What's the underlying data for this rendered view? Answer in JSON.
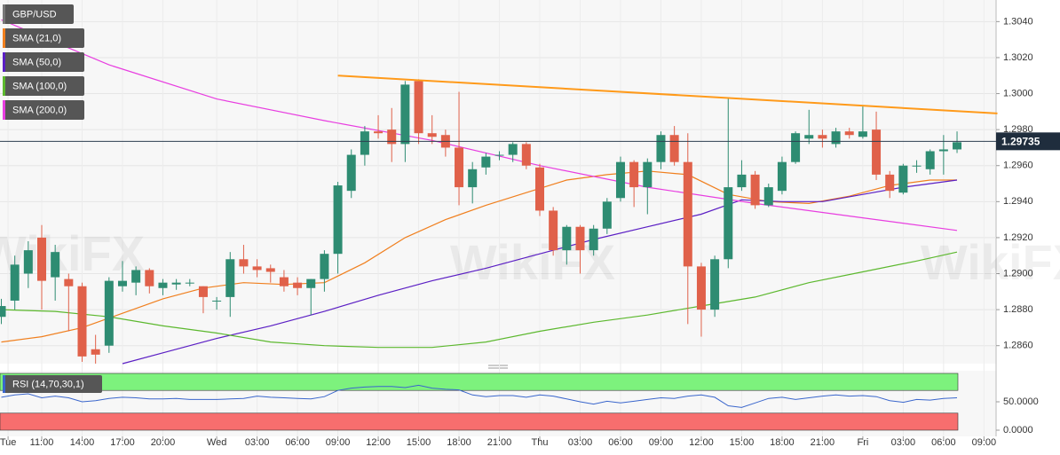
{
  "chart_data": [
    {
      "type": "candlestick",
      "title": "GBP/USD",
      "watermark": "WikiFX",
      "x": [
        8,
        9,
        10,
        11,
        12,
        13,
        14,
        15,
        16,
        17,
        18,
        19,
        20,
        21,
        22,
        23,
        24,
        25,
        26,
        27,
        28,
        29,
        30,
        31,
        32,
        33,
        34,
        35,
        36,
        37,
        38,
        39,
        40,
        41,
        42,
        43,
        44,
        45,
        46,
        47,
        48,
        49,
        50,
        51,
        52,
        53,
        54,
        55,
        56,
        57,
        58,
        59,
        60,
        61,
        62,
        63,
        64,
        65,
        66,
        67,
        68,
        69,
        70,
        71,
        72,
        73,
        74,
        75,
        76,
        77,
        78,
        79
      ],
      "open": [
        1.2876,
        1.2885,
        1.29,
        1.292,
        1.2898,
        1.2897,
        1.2893,
        1.2858,
        1.286,
        1.2893,
        1.2895,
        1.2902,
        1.2892,
        1.2894,
        1.2895,
        1.2893,
        1.2885,
        1.2887,
        1.2908,
        1.2904,
        1.2903,
        1.2898,
        1.2895,
        1.2892,
        1.2897,
        1.2911,
        1.2946,
        1.2966,
        1.2979,
        1.298,
        1.2972,
        1.3007,
        1.2978,
        1.2977,
        1.297,
        1.2948,
        1.2959,
        1.2966,
        1.2966,
        1.2972,
        1.2959,
        1.2935,
        1.2913,
        1.2926,
        1.2913,
        1.2925,
        1.2942,
        1.2962,
        1.2948,
        1.2962,
        1.2977,
        1.2962,
        1.2904,
        1.288,
        1.2908,
        1.2948,
        1.2955,
        1.2938,
        1.2946,
        1.2962,
        1.2975,
        1.2977,
        1.2972,
        1.2979,
        1.2976,
        1.298,
        1.2955,
        1.2945,
        1.296,
        1.2958,
        1.2968,
        1.2969
      ],
      "high": [
        1.2886,
        1.291,
        1.2918,
        1.2927,
        1.2916,
        1.29,
        1.2895,
        1.2866,
        1.2898,
        1.2907,
        1.2904,
        1.2903,
        1.2897,
        1.2897,
        1.2897,
        1.2893,
        1.2887,
        1.2912,
        1.2916,
        1.2908,
        1.2905,
        1.2902,
        1.2898,
        1.2897,
        1.2913,
        1.2951,
        1.2969,
        1.2982,
        1.2988,
        1.2992,
        1.3007,
        1.3008,
        1.2988,
        1.298,
        1.3001,
        1.2962,
        1.2967,
        1.2968,
        1.2973,
        1.2973,
        1.2961,
        1.2937,
        1.2927,
        1.2927,
        1.2927,
        1.2942,
        1.2965,
        1.2963,
        1.2964,
        1.2979,
        1.2982,
        1.2978,
        1.2906,
        1.291,
        1.2998,
        1.2963,
        1.2957,
        1.295,
        1.2965,
        1.2979,
        1.2991,
        1.298,
        1.2981,
        1.2981,
        1.2993,
        1.299,
        1.2957,
        1.2961,
        1.2963,
        1.2969,
        1.2977,
        1.2979
      ],
      "low": [
        1.2872,
        1.288,
        1.2892,
        1.288,
        1.2885,
        1.2868,
        1.2851,
        1.285,
        1.2856,
        1.289,
        1.2888,
        1.2889,
        1.2888,
        1.2891,
        1.2893,
        1.2878,
        1.288,
        1.2876,
        1.29,
        1.2898,
        1.2895,
        1.289,
        1.2888,
        1.2877,
        1.289,
        1.29,
        1.2942,
        1.296,
        1.2975,
        1.2962,
        1.2962,
        1.2972,
        1.2972,
        1.2965,
        1.2938,
        1.2939,
        1.2955,
        1.2963,
        1.2962,
        1.2958,
        1.2932,
        1.291,
        1.2905,
        1.29,
        1.291,
        1.2922,
        1.294,
        1.2937,
        1.2933,
        1.2958,
        1.296,
        1.2872,
        1.2865,
        1.2876,
        1.2903,
        1.2946,
        1.2936,
        1.2937,
        1.2944,
        1.2961,
        1.2972,
        1.297,
        1.297,
        1.2975,
        1.2975,
        1.2952,
        1.2942,
        1.2944,
        1.2956,
        1.2955,
        1.2955,
        1.2967
      ],
      "close": [
        1.2882,
        1.2905,
        1.2913,
        1.2896,
        1.2912,
        1.2893,
        1.2854,
        1.2855,
        1.2896,
        1.2896,
        1.2902,
        1.2893,
        1.2895,
        1.2895,
        1.2895,
        1.2887,
        1.2885,
        1.2908,
        1.2904,
        1.2902,
        1.2901,
        1.2893,
        1.2892,
        1.2897,
        1.2911,
        1.2949,
        1.2966,
        1.2979,
        1.2978,
        1.2972,
        1.3005,
        1.2978,
        1.2976,
        1.297,
        1.2948,
        1.2958,
        1.2965,
        1.2966,
        1.2972,
        1.296,
        1.2935,
        1.2913,
        1.2926,
        1.2913,
        1.2925,
        1.294,
        1.2962,
        1.2948,
        1.2962,
        1.2977,
        1.2962,
        1.2904,
        1.288,
        1.2908,
        1.2948,
        1.2955,
        1.2938,
        1.2948,
        1.2962,
        1.2978,
        1.2977,
        1.2975,
        1.2979,
        1.2977,
        1.2979,
        1.2955,
        1.2946,
        1.296,
        1.296,
        1.2968,
        1.2969,
        1.2973
      ],
      "up_color": "#2e8c72",
      "down_color": "#e0614a",
      "overlays": [
        {
          "name": "SMA (21,0)",
          "color": "#f07f1e",
          "x": [
            8,
            11,
            14,
            17,
            20,
            23,
            26,
            29,
            32,
            35,
            38,
            41,
            44,
            47,
            50,
            53,
            56,
            59,
            62,
            65,
            68,
            71,
            74,
            77,
            79
          ],
          "values": [
            1.2862,
            1.2865,
            1.287,
            1.2878,
            1.2886,
            1.2892,
            1.2895,
            1.2894,
            1.2895,
            1.2906,
            1.292,
            1.293,
            1.2938,
            1.2945,
            1.2952,
            1.2955,
            1.2957,
            1.2955,
            1.2944,
            1.294,
            1.2939,
            1.2943,
            1.2949,
            1.2952,
            1.2952
          ]
        },
        {
          "name": "SMA (50,0)",
          "color": "#5b1fc4",
          "x": [
            17,
            20,
            24,
            28,
            32,
            36,
            40,
            44,
            48,
            52,
            56,
            60,
            63,
            66,
            69,
            72,
            75,
            79
          ],
          "values": [
            1.285,
            1.2856,
            1.2864,
            1.2871,
            1.2879,
            1.2888,
            1.2896,
            1.2903,
            1.2911,
            1.2919,
            1.2926,
            1.2933,
            1.2941,
            1.294,
            1.294,
            1.2944,
            1.2948,
            1.2952
          ]
        },
        {
          "name": "SMA (100,0)",
          "color": "#5cb82e",
          "x": [
            8,
            12,
            16,
            20,
            24,
            28,
            32,
            36,
            40,
            44,
            48,
            52,
            56,
            60,
            64,
            68,
            72,
            76,
            79
          ],
          "values": [
            1.288,
            1.2879,
            1.2876,
            1.2871,
            1.2867,
            1.2862,
            1.286,
            1.2859,
            1.2859,
            1.2862,
            1.2868,
            1.2873,
            1.2877,
            1.2882,
            1.2887,
            1.2895,
            1.2901,
            1.2907,
            1.2912
          ]
        },
        {
          "name": "SMA (200,0)",
          "color": "#e83ee0",
          "x": [
            8,
            16,
            24,
            32,
            40,
            48,
            56,
            64,
            72,
            79
          ],
          "values": [
            1.3041,
            1.3016,
            1.2997,
            1.2985,
            1.2974,
            1.296,
            1.2948,
            1.2939,
            1.2931,
            1.2924
          ]
        }
      ],
      "trendline": {
        "color": "#ff9a1a",
        "x": [
          33,
          82
        ],
        "values": [
          1.301,
          1.2989
        ]
      },
      "last_price": 1.29735,
      "xlim": [
        7.9,
        81.9
      ],
      "ylim": [
        1.285,
        1.3052
      ],
      "yticks": [
        {
          "value": 1.286,
          "label": "1.2860"
        },
        {
          "value": 1.288,
          "label": "1.2880"
        },
        {
          "value": 1.29,
          "label": "1.2900"
        },
        {
          "value": 1.292,
          "label": "1.2920"
        },
        {
          "value": 1.294,
          "label": "1.2940"
        },
        {
          "value": 1.296,
          "label": "1.2960"
        },
        {
          "value": 1.298,
          "label": "1.2980"
        },
        {
          "value": 1.3,
          "label": "1.3000"
        },
        {
          "value": 1.302,
          "label": "1.3020"
        },
        {
          "value": 1.304,
          "label": "1.3040"
        }
      ],
      "xticks": [
        {
          "value": 8.5,
          "label": "Tue"
        },
        {
          "value": 11,
          "label": "11:00"
        },
        {
          "value": 14,
          "label": "14:00"
        },
        {
          "value": 17,
          "label": "17:00"
        },
        {
          "value": 20,
          "label": "20:00"
        },
        {
          "value": 24,
          "label": "Wed"
        },
        {
          "value": 27,
          "label": "03:00"
        },
        {
          "value": 30,
          "label": "06:00"
        },
        {
          "value": 33,
          "label": "09:00"
        },
        {
          "value": 36,
          "label": "12:00"
        },
        {
          "value": 39,
          "label": "15:00"
        },
        {
          "value": 42,
          "label": "18:00"
        },
        {
          "value": 45,
          "label": "21:00"
        },
        {
          "value": 48,
          "label": "Thu"
        },
        {
          "value": 51,
          "label": "03:00"
        },
        {
          "value": 54,
          "label": "06:00"
        },
        {
          "value": 57,
          "label": "09:00"
        },
        {
          "value": 60,
          "label": "12:00"
        },
        {
          "value": 63,
          "label": "15:00"
        },
        {
          "value": 66,
          "label": "18:00"
        },
        {
          "value": 69,
          "label": "21:00"
        },
        {
          "value": 72,
          "label": "Fri"
        },
        {
          "value": 75,
          "label": "03:00"
        },
        {
          "value": 78,
          "label": "06:00"
        },
        {
          "value": 81,
          "label": "09:00"
        }
      ]
    },
    {
      "type": "line",
      "title": "RSI (14,70,30,1)",
      "x": [
        8,
        9,
        10,
        11,
        12,
        13,
        14,
        15,
        16,
        17,
        18,
        19,
        20,
        21,
        22,
        23,
        24,
        25,
        26,
        27,
        28,
        29,
        30,
        31,
        32,
        33,
        34,
        35,
        36,
        37,
        38,
        39,
        40,
        41,
        42,
        43,
        44,
        45,
        46,
        47,
        48,
        49,
        50,
        51,
        52,
        53,
        54,
        55,
        56,
        57,
        58,
        59,
        60,
        61,
        62,
        63,
        64,
        65,
        66,
        67,
        68,
        69,
        70,
        71,
        72,
        73,
        74,
        75,
        76,
        77,
        78,
        79
      ],
      "series": [
        {
          "name": "RSI",
          "color": "#3a66cc",
          "values": [
            58,
            62,
            64,
            57,
            60,
            57,
            50,
            52,
            56,
            58,
            57,
            55,
            55,
            56,
            54,
            54,
            54,
            55,
            56,
            60,
            58,
            57,
            56,
            55,
            59,
            70,
            74,
            76,
            77,
            77,
            75,
            79,
            74,
            72,
            71,
            62,
            59,
            61,
            61,
            58,
            62,
            60,
            55,
            50,
            46,
            51,
            48,
            51,
            54,
            57,
            56,
            60,
            62,
            58,
            43,
            40,
            48,
            56,
            58,
            54,
            57,
            60,
            62,
            60,
            61,
            59,
            52,
            49,
            54,
            53,
            56,
            57
          ]
        }
      ],
      "bands": [
        {
          "from": 70,
          "to": 100,
          "color": "#7df27d"
        },
        {
          "from": 0,
          "to": 30,
          "color": "#f76e6e"
        }
      ],
      "xlim": [
        7.9,
        81.9
      ],
      "ylim": [
        0,
        100
      ],
      "yticks": [
        {
          "value": 0,
          "label": "0.0000"
        },
        {
          "value": 50,
          "label": "50.0000"
        }
      ]
    }
  ]
}
